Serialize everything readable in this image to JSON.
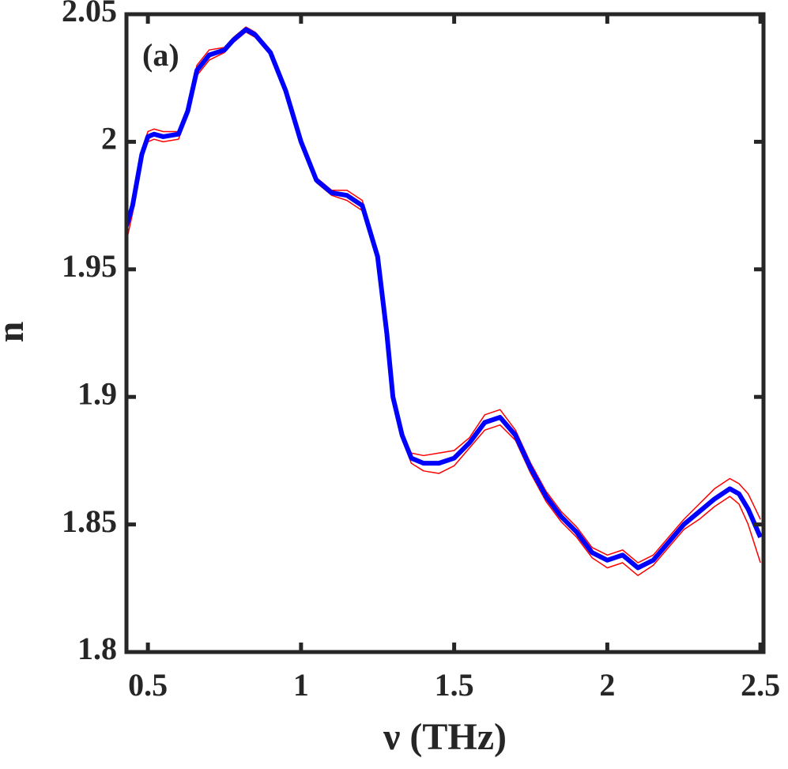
{
  "chart_data": {
    "type": "line",
    "annotation": "(a)",
    "x_label": "ν (THz)",
    "y_label": "n",
    "x": [
      0.43,
      0.45,
      0.48,
      0.5,
      0.52,
      0.55,
      0.6,
      0.63,
      0.66,
      0.7,
      0.75,
      0.78,
      0.82,
      0.85,
      0.9,
      0.95,
      1.0,
      1.05,
      1.1,
      1.15,
      1.2,
      1.25,
      1.28,
      1.3,
      1.33,
      1.36,
      1.4,
      1.45,
      1.5,
      1.55,
      1.6,
      1.65,
      1.7,
      1.75,
      1.8,
      1.85,
      1.9,
      1.95,
      2.0,
      2.05,
      2.1,
      2.15,
      2.2,
      2.25,
      2.3,
      2.35,
      2.4,
      2.43,
      2.46,
      2.5
    ],
    "series": [
      {
        "color": "#ff0000",
        "width": 1.5,
        "values": [
          1.969,
          1.977,
          1.997,
          2.004,
          2.005,
          2.004,
          2.004,
          2.013,
          2.03,
          2.036,
          2.037,
          2.041,
          2.045,
          2.043,
          2.036,
          2.021,
          2.001,
          1.986,
          1.981,
          1.981,
          1.977,
          1.957,
          1.926,
          1.901,
          1.886,
          1.878,
          1.877,
          1.878,
          1.879,
          1.884,
          1.893,
          1.895,
          1.887,
          1.874,
          1.863,
          1.855,
          1.849,
          1.841,
          1.838,
          1.84,
          1.835,
          1.838,
          1.845,
          1.852,
          1.858,
          1.864,
          1.868,
          1.866,
          1.862,
          1.852
        ]
      },
      {
        "color": "#ff0000",
        "width": 1.5,
        "values": [
          1.961,
          1.972,
          1.993,
          2.0,
          2.001,
          2.0,
          2.001,
          2.011,
          2.026,
          2.032,
          2.035,
          2.039,
          2.043,
          2.041,
          2.034,
          2.019,
          1.999,
          1.984,
          1.979,
          1.977,
          1.973,
          1.953,
          1.924,
          1.899,
          1.884,
          1.874,
          1.871,
          1.87,
          1.873,
          1.88,
          1.887,
          1.889,
          1.883,
          1.87,
          1.859,
          1.851,
          1.845,
          1.837,
          1.833,
          1.835,
          1.83,
          1.834,
          1.841,
          1.848,
          1.852,
          1.857,
          1.861,
          1.858,
          1.85,
          1.835
        ]
      },
      {
        "color": "#0000ff",
        "width": 6,
        "values": [
          1.967,
          1.975,
          1.995,
          2.002,
          2.003,
          2.002,
          2.003,
          2.012,
          2.028,
          2.034,
          2.036,
          2.04,
          2.044,
          2.042,
          2.035,
          2.02,
          2.0,
          1.985,
          1.98,
          1.979,
          1.975,
          1.955,
          1.925,
          1.9,
          1.885,
          1.876,
          1.874,
          1.874,
          1.876,
          1.882,
          1.89,
          1.892,
          1.885,
          1.872,
          1.861,
          1.853,
          1.847,
          1.839,
          1.836,
          1.838,
          1.833,
          1.836,
          1.843,
          1.85,
          1.855,
          1.86,
          1.864,
          1.862,
          1.856,
          1.845
        ]
      }
    ],
    "xlim": [
      0.43,
      2.51
    ],
    "xticks": [
      0.5,
      1,
      1.5,
      2,
      2.5
    ],
    "ylim": [
      1.8,
      2.05
    ],
    "yticks": [
      1.8,
      1.85,
      1.9,
      1.95,
      2,
      2.05
    ],
    "grid": false
  }
}
